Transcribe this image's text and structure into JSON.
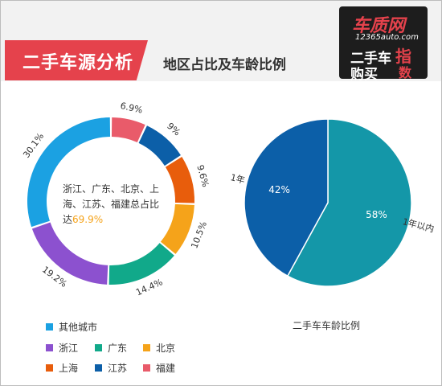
{
  "header": {
    "title": "二手车源分析",
    "subtitle": "地区占比及车龄比例"
  },
  "logo": {
    "brand": "车质网",
    "site": "12365auto.com",
    "line1": "二手车",
    "line2": "购买",
    "accent1": "指",
    "accent2": "数"
  },
  "chart_data": [
    {
      "type": "pie",
      "donut": true,
      "title": "",
      "categories": [
        "福建",
        "江苏",
        "上海",
        "北京",
        "广东",
        "浙江",
        "其他城市"
      ],
      "values": [
        6.9,
        9,
        9.6,
        10.5,
        14.4,
        19.2,
        30.1
      ],
      "labels": [
        "6.9%",
        "9%",
        "9.6%",
        "10.5%",
        "14.4%",
        "19.2%",
        "30.1%"
      ],
      "colors": [
        "#e95b6a",
        "#0c5fa8",
        "#e85d0c",
        "#f5a31a",
        "#11a98a",
        "#8c51cf",
        "#1ba1e2"
      ],
      "annotation": "浙江、广东、北京、上海、江苏、福建总占比达",
      "annotation_value": "69.9%",
      "legend_placement": "bottom"
    },
    {
      "type": "pie",
      "title": "二手车车龄比例",
      "categories": [
        "1年以内",
        "1年"
      ],
      "values": [
        58,
        42
      ],
      "labels": [
        "58%",
        "42%"
      ],
      "colors": [
        "#1497a8",
        "#0c5fa8"
      ],
      "legend_placement": "none"
    }
  ],
  "legend": {
    "rows": [
      [
        {
          "label": "其他城市",
          "color": "#1ba1e2"
        }
      ],
      [
        {
          "label": "浙江",
          "color": "#8c51cf"
        },
        {
          "label": "广东",
          "color": "#11a98a"
        },
        {
          "label": "北京",
          "color": "#f5a31a"
        }
      ],
      [
        {
          "label": "上海",
          "color": "#e85d0c"
        },
        {
          "label": "江苏",
          "color": "#0c5fa8"
        },
        {
          "label": "福建",
          "color": "#e95b6a"
        }
      ]
    ]
  }
}
